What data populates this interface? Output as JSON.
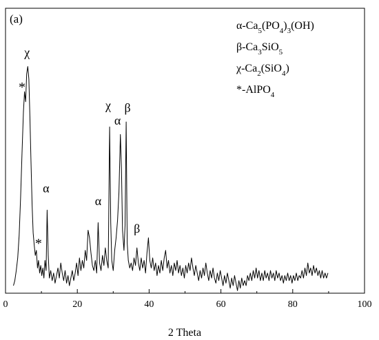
{
  "chart_data": {
    "type": "line",
    "panel_label": "(a)",
    "title": "",
    "xlabel": "2 Theta",
    "ylabel": "",
    "xlim": [
      0,
      100
    ],
    "x_ticks": [
      0,
      20,
      40,
      60,
      80,
      100
    ],
    "y_axis_ticks_shown": false,
    "grid": false,
    "line_color": "#000000",
    "series": [
      {
        "points": [
          [
            2.2,
            0.03
          ],
          [
            2.6,
            0.05
          ],
          [
            3.0,
            0.09
          ],
          [
            3.4,
            0.14
          ],
          [
            3.8,
            0.23
          ],
          [
            4.2,
            0.38
          ],
          [
            4.6,
            0.56
          ],
          [
            5.0,
            0.72
          ],
          [
            5.3,
            0.8
          ],
          [
            5.6,
            0.76
          ],
          [
            5.9,
            0.87
          ],
          [
            6.2,
            0.9
          ],
          [
            6.5,
            0.85
          ],
          [
            6.8,
            0.7
          ],
          [
            7.1,
            0.52
          ],
          [
            7.4,
            0.35
          ],
          [
            7.7,
            0.24
          ],
          [
            8.0,
            0.19
          ],
          [
            8.3,
            0.15
          ],
          [
            8.6,
            0.17
          ],
          [
            8.9,
            0.1
          ],
          [
            9.2,
            0.13
          ],
          [
            9.5,
            0.08
          ],
          [
            9.8,
            0.11
          ],
          [
            10.1,
            0.07
          ],
          [
            10.4,
            0.1
          ],
          [
            10.7,
            0.06
          ],
          [
            11.0,
            0.13
          ],
          [
            11.3,
            0.09
          ],
          [
            11.6,
            0.33
          ],
          [
            11.9,
            0.15
          ],
          [
            12.2,
            0.06
          ],
          [
            12.6,
            0.09
          ],
          [
            13.0,
            0.05
          ],
          [
            13.4,
            0.08
          ],
          [
            13.8,
            0.04
          ],
          [
            14.2,
            0.07
          ],
          [
            14.6,
            0.1
          ],
          [
            15.0,
            0.06
          ],
          [
            15.4,
            0.12
          ],
          [
            15.8,
            0.08
          ],
          [
            16.2,
            0.05
          ],
          [
            16.6,
            0.09
          ],
          [
            17.0,
            0.04
          ],
          [
            17.4,
            0.07
          ],
          [
            17.8,
            0.03
          ],
          [
            18.2,
            0.06
          ],
          [
            18.6,
            0.09
          ],
          [
            19.0,
            0.05
          ],
          [
            19.4,
            0.08
          ],
          [
            19.8,
            0.12
          ],
          [
            20.2,
            0.07
          ],
          [
            20.6,
            0.14
          ],
          [
            21.0,
            0.09
          ],
          [
            21.4,
            0.13
          ],
          [
            21.8,
            0.1
          ],
          [
            22.2,
            0.17
          ],
          [
            22.6,
            0.13
          ],
          [
            23.0,
            0.25
          ],
          [
            23.4,
            0.22
          ],
          [
            23.8,
            0.16
          ],
          [
            24.2,
            0.11
          ],
          [
            24.6,
            0.09
          ],
          [
            25.0,
            0.13
          ],
          [
            25.4,
            0.08
          ],
          [
            25.8,
            0.28
          ],
          [
            26.2,
            0.12
          ],
          [
            26.6,
            0.09
          ],
          [
            27.0,
            0.15
          ],
          [
            27.4,
            0.11
          ],
          [
            27.8,
            0.18
          ],
          [
            28.2,
            0.13
          ],
          [
            28.6,
            0.1
          ],
          [
            29.0,
            0.66
          ],
          [
            29.3,
            0.28
          ],
          [
            29.6,
            0.13
          ],
          [
            30.0,
            0.09
          ],
          [
            30.4,
            0.17
          ],
          [
            30.8,
            0.22
          ],
          [
            31.2,
            0.29
          ],
          [
            31.6,
            0.4
          ],
          [
            32.0,
            0.63
          ],
          [
            32.3,
            0.49
          ],
          [
            32.6,
            0.25
          ],
          [
            33.0,
            0.17
          ],
          [
            33.3,
            0.27
          ],
          [
            33.6,
            0.68
          ],
          [
            33.9,
            0.2
          ],
          [
            34.2,
            0.13
          ],
          [
            34.6,
            0.1
          ],
          [
            35.0,
            0.12
          ],
          [
            35.4,
            0.09
          ],
          [
            35.8,
            0.14
          ],
          [
            36.2,
            0.11
          ],
          [
            36.6,
            0.18
          ],
          [
            37.0,
            0.12
          ],
          [
            37.4,
            0.09
          ],
          [
            37.8,
            0.14
          ],
          [
            38.2,
            0.1
          ],
          [
            38.6,
            0.13
          ],
          [
            39.0,
            0.08
          ],
          [
            39.4,
            0.16
          ],
          [
            39.8,
            0.22
          ],
          [
            40.2,
            0.13
          ],
          [
            40.6,
            0.1
          ],
          [
            41.0,
            0.14
          ],
          [
            41.4,
            0.09
          ],
          [
            41.8,
            0.12
          ],
          [
            42.2,
            0.07
          ],
          [
            42.6,
            0.11
          ],
          [
            43.0,
            0.08
          ],
          [
            43.4,
            0.13
          ],
          [
            43.8,
            0.09
          ],
          [
            44.2,
            0.14
          ],
          [
            44.6,
            0.17
          ],
          [
            45.0,
            0.1
          ],
          [
            45.4,
            0.13
          ],
          [
            45.8,
            0.08
          ],
          [
            46.2,
            0.11
          ],
          [
            46.6,
            0.07
          ],
          [
            47.0,
            0.12
          ],
          [
            47.4,
            0.09
          ],
          [
            47.8,
            0.13
          ],
          [
            48.2,
            0.08
          ],
          [
            48.6,
            0.11
          ],
          [
            49.0,
            0.07
          ],
          [
            49.4,
            0.1
          ],
          [
            49.8,
            0.06
          ],
          [
            50.2,
            0.11
          ],
          [
            50.6,
            0.08
          ],
          [
            51.0,
            0.12
          ],
          [
            51.4,
            0.09
          ],
          [
            51.8,
            0.14
          ],
          [
            52.2,
            0.1
          ],
          [
            52.6,
            0.07
          ],
          [
            53.0,
            0.11
          ],
          [
            53.4,
            0.08
          ],
          [
            53.8,
            0.05
          ],
          [
            54.2,
            0.09
          ],
          [
            54.6,
            0.06
          ],
          [
            55.0,
            0.1
          ],
          [
            55.4,
            0.07
          ],
          [
            55.8,
            0.12
          ],
          [
            56.2,
            0.08
          ],
          [
            56.6,
            0.05
          ],
          [
            57.0,
            0.09
          ],
          [
            57.4,
            0.06
          ],
          [
            57.8,
            0.1
          ],
          [
            58.2,
            0.06
          ],
          [
            58.6,
            0.04
          ],
          [
            59.0,
            0.08
          ],
          [
            59.4,
            0.05
          ],
          [
            59.8,
            0.09
          ],
          [
            60.2,
            0.06
          ],
          [
            60.6,
            0.03
          ],
          [
            61.0,
            0.07
          ],
          [
            61.4,
            0.04
          ],
          [
            61.8,
            0.08
          ],
          [
            62.2,
            0.05
          ],
          [
            62.6,
            0.02
          ],
          [
            63.0,
            0.06
          ],
          [
            63.4,
            0.03
          ],
          [
            63.8,
            0.07
          ],
          [
            64.2,
            0.04
          ],
          [
            64.6,
            0.01
          ],
          [
            65.0,
            0.05
          ],
          [
            65.4,
            0.02
          ],
          [
            65.8,
            0.06
          ],
          [
            66.2,
            0.03
          ],
          [
            66.6,
            0.05
          ],
          [
            67.0,
            0.03
          ],
          [
            67.4,
            0.07
          ],
          [
            67.8,
            0.05
          ],
          [
            68.2,
            0.08
          ],
          [
            68.6,
            0.05
          ],
          [
            69.0,
            0.09
          ],
          [
            69.4,
            0.06
          ],
          [
            69.8,
            0.1
          ],
          [
            70.2,
            0.06
          ],
          [
            70.6,
            0.09
          ],
          [
            71.0,
            0.05
          ],
          [
            71.4,
            0.08
          ],
          [
            71.8,
            0.05
          ],
          [
            72.2,
            0.09
          ],
          [
            72.6,
            0.06
          ],
          [
            73.0,
            0.08
          ],
          [
            73.4,
            0.05
          ],
          [
            73.8,
            0.09
          ],
          [
            74.2,
            0.06
          ],
          [
            74.6,
            0.08
          ],
          [
            75.0,
            0.05
          ],
          [
            75.4,
            0.09
          ],
          [
            75.8,
            0.06
          ],
          [
            76.2,
            0.08
          ],
          [
            76.6,
            0.05
          ],
          [
            77.0,
            0.07
          ],
          [
            77.4,
            0.04
          ],
          [
            77.8,
            0.07
          ],
          [
            78.2,
            0.05
          ],
          [
            78.6,
            0.08
          ],
          [
            79.0,
            0.05
          ],
          [
            79.4,
            0.07
          ],
          [
            79.8,
            0.04
          ],
          [
            80.2,
            0.07
          ],
          [
            80.6,
            0.05
          ],
          [
            81.0,
            0.08
          ],
          [
            81.4,
            0.05
          ],
          [
            81.8,
            0.07
          ],
          [
            82.2,
            0.06
          ],
          [
            82.6,
            0.09
          ],
          [
            83.0,
            0.06
          ],
          [
            83.4,
            0.1
          ],
          [
            83.8,
            0.07
          ],
          [
            84.2,
            0.12
          ],
          [
            84.6,
            0.08
          ],
          [
            85.0,
            0.1
          ],
          [
            85.4,
            0.07
          ],
          [
            85.8,
            0.11
          ],
          [
            86.2,
            0.08
          ],
          [
            86.6,
            0.1
          ],
          [
            87.0,
            0.07
          ],
          [
            87.4,
            0.09
          ],
          [
            87.8,
            0.06
          ],
          [
            88.2,
            0.09
          ],
          [
            88.6,
            0.06
          ],
          [
            89.0,
            0.08
          ],
          [
            89.4,
            0.06
          ],
          [
            89.8,
            0.08
          ]
        ]
      }
    ],
    "peak_labels": [
      {
        "text": "χ",
        "x": 6.0,
        "y": 0.94
      },
      {
        "text": "*",
        "x": 4.6,
        "y": 0.8
      },
      {
        "text": "α",
        "x": 11.3,
        "y": 0.4
      },
      {
        "text": "*",
        "x": 9.2,
        "y": 0.18
      },
      {
        "text": "α",
        "x": 25.8,
        "y": 0.35
      },
      {
        "text": "χ",
        "x": 28.6,
        "y": 0.73
      },
      {
        "text": "α",
        "x": 31.2,
        "y": 0.67
      },
      {
        "text": "β",
        "x": 34.0,
        "y": 0.72
      },
      {
        "text": "β",
        "x": 36.6,
        "y": 0.24
      }
    ],
    "legend": {
      "placement": "top-right",
      "entries": [
        [
          {
            "t": "α-Ca"
          },
          {
            "t": "5",
            "sub": true
          },
          {
            "t": "(PO"
          },
          {
            "t": "4",
            "sub": true
          },
          {
            "t": ")"
          },
          {
            "t": "3",
            "sub": true
          },
          {
            "t": "(OH)"
          }
        ],
        [
          {
            "t": "β-Ca"
          },
          {
            "t": "3",
            "sub": true
          },
          {
            "t": "SiO"
          },
          {
            "t": "5",
            "sub": true
          }
        ],
        [
          {
            "t": "χ-Ca"
          },
          {
            "t": "2",
            "sub": true
          },
          {
            "t": "(SiO"
          },
          {
            "t": "4",
            "sub": true
          },
          {
            "t": ")"
          }
        ],
        [
          {
            "t": "*-AlPO"
          },
          {
            "t": "4",
            "sub": true
          }
        ]
      ]
    }
  }
}
